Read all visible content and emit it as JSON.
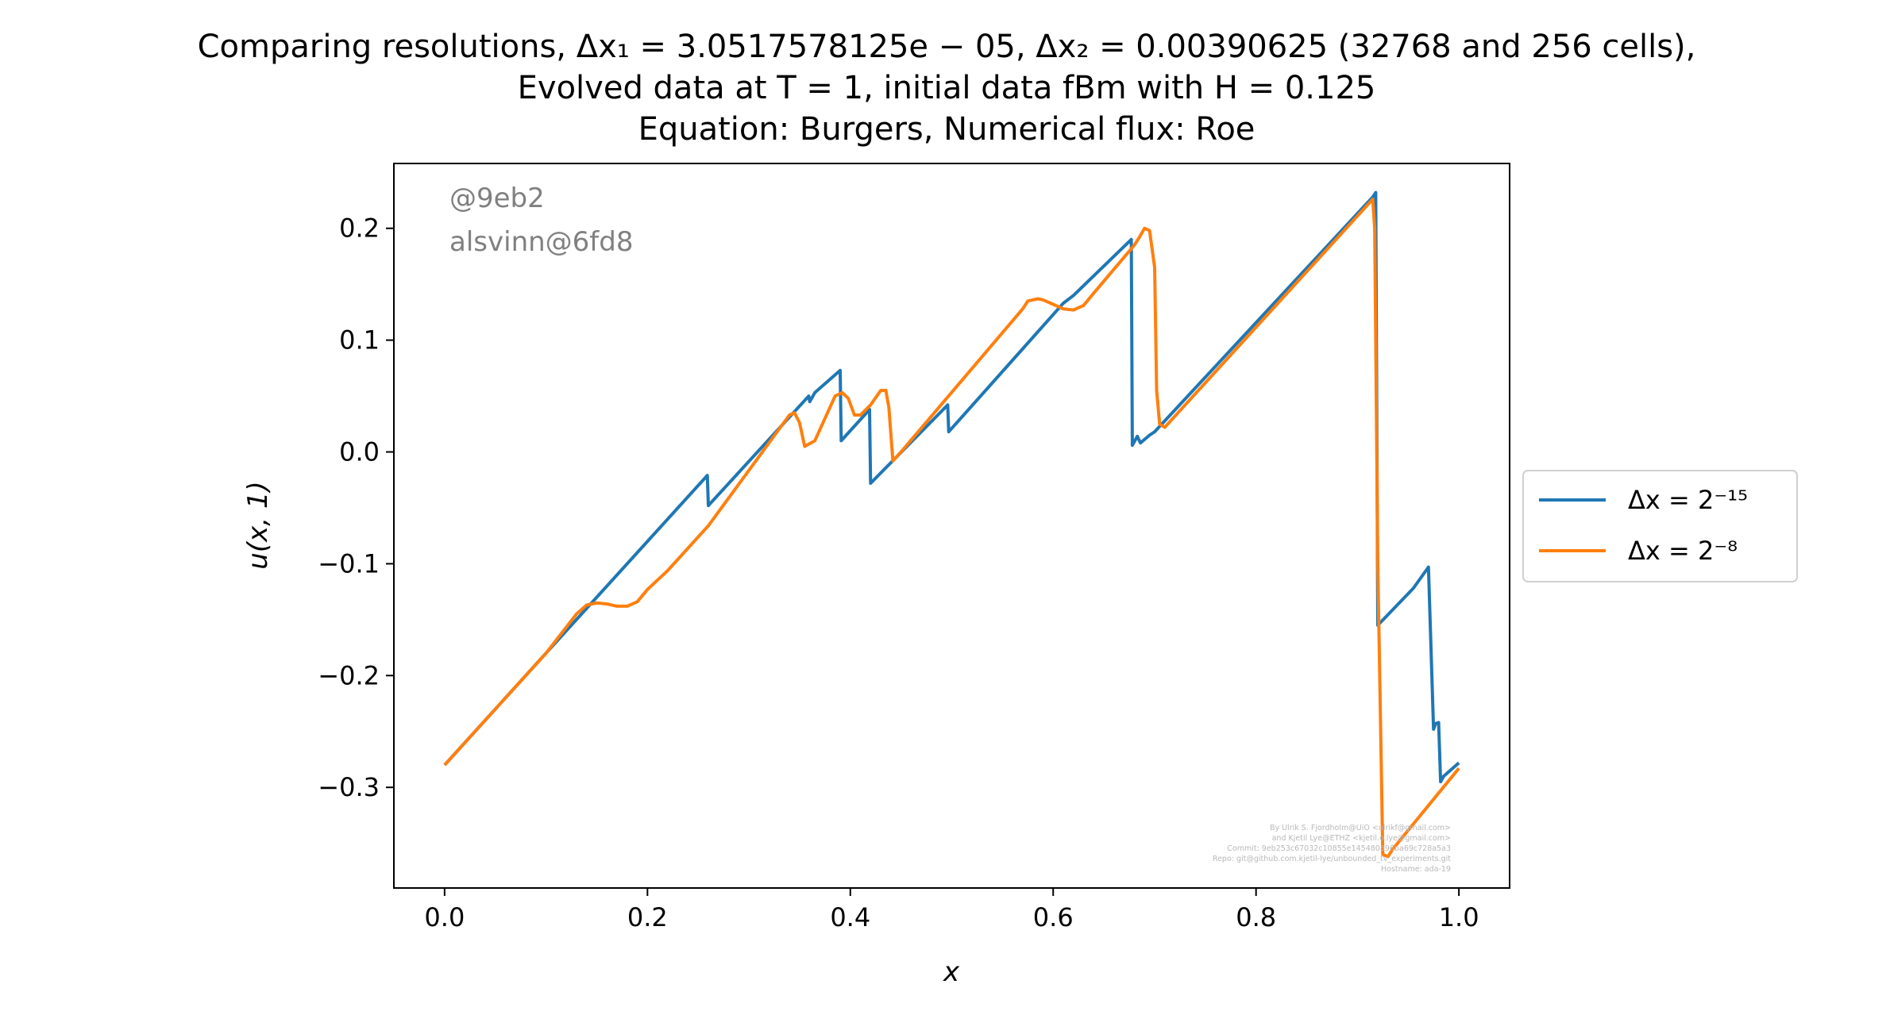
{
  "chart_data": {
    "type": "line",
    "title": [
      "Comparing resolutions, Δx₁ = 3.0517578125e − 05, Δx₂ = 0.00390625 (32768 and 256 cells),",
      "Evolved data at T = 1, initial data fBm with H = 0.125",
      "Equation: Burgers, Numerical flux: Roe"
    ],
    "xlabel": "x",
    "ylabel": "u(x, 1)",
    "xlim": [
      -0.05,
      1.05
    ],
    "ylim": [
      -0.39,
      0.258
    ],
    "xticks": [
      {
        "value": 0.0,
        "label": "0.0"
      },
      {
        "value": 0.2,
        "label": "0.2"
      },
      {
        "value": 0.4,
        "label": "0.4"
      },
      {
        "value": 0.6,
        "label": "0.6"
      },
      {
        "value": 0.8,
        "label": "0.8"
      },
      {
        "value": 1.0,
        "label": "1.0"
      }
    ],
    "yticks": [
      {
        "value": 0.2,
        "label": "0.2"
      },
      {
        "value": 0.1,
        "label": "0.1"
      },
      {
        "value": 0.0,
        "label": "0.0"
      },
      {
        "value": -0.1,
        "label": "−0.1"
      },
      {
        "value": -0.2,
        "label": "−0.2"
      },
      {
        "value": -0.3,
        "label": "−0.3"
      }
    ],
    "grid": false,
    "legend_position": "right, outside plot",
    "series": [
      {
        "name": "Δx = 2⁻¹⁵",
        "color": "#1f77b4",
        "points": [
          [
            0.0,
            -0.28
          ],
          [
            0.12,
            -0.16
          ],
          [
            0.259,
            -0.021
          ],
          [
            0.26,
            -0.048
          ],
          [
            0.359,
            0.05
          ],
          [
            0.36,
            0.045
          ],
          [
            0.365,
            0.053
          ],
          [
            0.39,
            0.073
          ],
          [
            0.391,
            0.01
          ],
          [
            0.419,
            0.038
          ],
          [
            0.42,
            -0.028
          ],
          [
            0.496,
            0.042
          ],
          [
            0.497,
            0.018
          ],
          [
            0.61,
            0.133
          ],
          [
            0.62,
            0.14
          ],
          [
            0.677,
            0.19
          ],
          [
            0.678,
            0.006
          ],
          [
            0.683,
            0.014
          ],
          [
            0.686,
            0.008
          ],
          [
            0.695,
            0.015
          ],
          [
            0.7,
            0.018
          ],
          [
            0.915,
            0.228
          ],
          [
            0.918,
            0.232
          ],
          [
            0.92,
            -0.155
          ],
          [
            0.955,
            -0.122
          ],
          [
            0.97,
            -0.103
          ],
          [
            0.975,
            -0.248
          ],
          [
            0.977,
            -0.243
          ],
          [
            0.98,
            -0.242
          ],
          [
            0.982,
            -0.295
          ],
          [
            0.985,
            -0.29
          ],
          [
            1.0,
            -0.278
          ]
        ]
      },
      {
        "name": "Δx = 2⁻⁸",
        "color": "#ff7f0e",
        "points": [
          [
            0.0,
            -0.28
          ],
          [
            0.1,
            -0.18
          ],
          [
            0.13,
            -0.145
          ],
          [
            0.14,
            -0.137
          ],
          [
            0.15,
            -0.135
          ],
          [
            0.16,
            -0.136
          ],
          [
            0.17,
            -0.138
          ],
          [
            0.18,
            -0.138
          ],
          [
            0.19,
            -0.134
          ],
          [
            0.2,
            -0.123
          ],
          [
            0.22,
            -0.106
          ],
          [
            0.26,
            -0.066
          ],
          [
            0.34,
            0.033
          ],
          [
            0.345,
            0.035
          ],
          [
            0.35,
            0.026
          ],
          [
            0.355,
            0.005
          ],
          [
            0.365,
            0.01
          ],
          [
            0.385,
            0.05
          ],
          [
            0.392,
            0.053
          ],
          [
            0.398,
            0.048
          ],
          [
            0.404,
            0.033
          ],
          [
            0.41,
            0.033
          ],
          [
            0.42,
            0.042
          ],
          [
            0.43,
            0.055
          ],
          [
            0.435,
            0.055
          ],
          [
            0.438,
            0.04
          ],
          [
            0.442,
            -0.008
          ],
          [
            0.45,
            0.0
          ],
          [
            0.57,
            0.128
          ],
          [
            0.575,
            0.135
          ],
          [
            0.585,
            0.137
          ],
          [
            0.59,
            0.136
          ],
          [
            0.6,
            0.132
          ],
          [
            0.61,
            0.128
          ],
          [
            0.62,
            0.127
          ],
          [
            0.63,
            0.131
          ],
          [
            0.64,
            0.142
          ],
          [
            0.68,
            0.185
          ],
          [
            0.685,
            0.192
          ],
          [
            0.69,
            0.2
          ],
          [
            0.695,
            0.198
          ],
          [
            0.7,
            0.165
          ],
          [
            0.702,
            0.055
          ],
          [
            0.705,
            0.025
          ],
          [
            0.71,
            0.022
          ],
          [
            0.915,
            0.226
          ],
          [
            0.917,
            0.2
          ],
          [
            0.92,
            -0.1
          ],
          [
            0.925,
            -0.36
          ],
          [
            0.93,
            -0.362
          ],
          [
            0.935,
            -0.355
          ],
          [
            1.0,
            -0.283
          ]
        ]
      }
    ]
  },
  "annotations": {
    "stamp_lines": [
      "@9eb2",
      "alsvinn@6fd8"
    ],
    "credit_lines": [
      "By Ulrik S. Fjordholm@UiO <ulrikf@gmail.com>",
      "and Kjetil Lye@ETHZ <kjetil.o.lye@gmail.com>",
      "Commit: 9eb253c67032c10855e145480896ba69c728a5a3",
      "Repo: git@github.com.kjetil-lye/unbounded_tv_experiments.git",
      "Hostname: ada-19"
    ]
  },
  "legend": {
    "items": [
      "Δx = 2⁻¹⁵",
      "Δx = 2⁻⁸"
    ]
  }
}
